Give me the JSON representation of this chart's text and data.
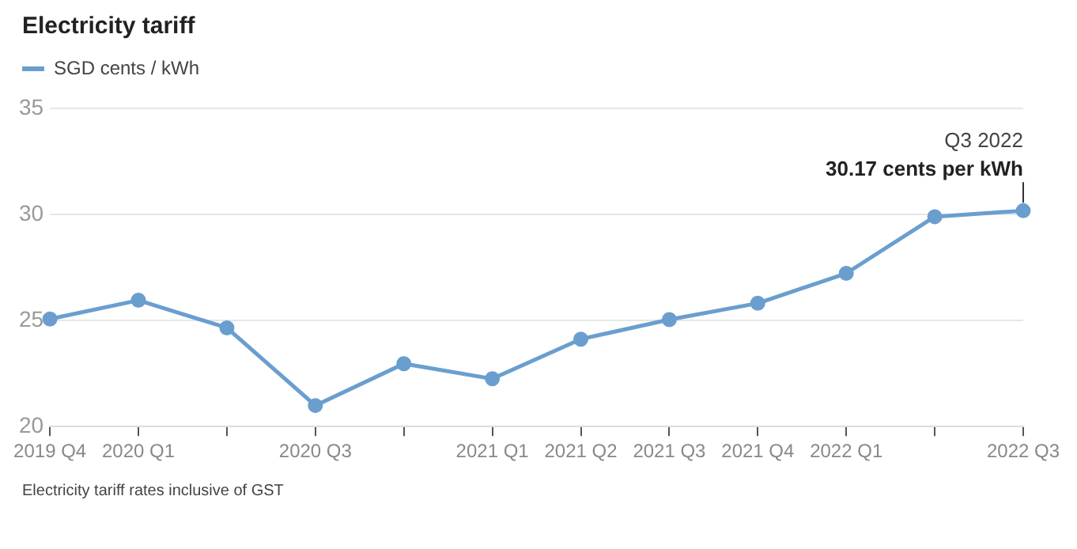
{
  "chart_data": {
    "type": "line",
    "title": "Electricity tariff",
    "categories": [
      "2019 Q4",
      "2020 Q1",
      null,
      "2020 Q3",
      null,
      "2021 Q1",
      "2021 Q2",
      "2021 Q3",
      "2021 Q4",
      "2022 Q1",
      null,
      "2022 Q3"
    ],
    "series": [
      {
        "name": "SGD cents / kWh",
        "color": "#6a9ecf",
        "values": [
          25.07,
          25.95,
          24.65,
          20.99,
          22.96,
          22.25,
          24.12,
          25.04,
          25.81,
          27.22,
          29.89,
          30.17
        ]
      }
    ],
    "ylim": [
      20,
      35
    ],
    "yticks": [
      20,
      25,
      30,
      35
    ],
    "grid": "y",
    "legend": "top left",
    "marker": "circle",
    "annotations": [
      {
        "text": "Q3 2022",
        "x": "2022 Q3",
        "y": 30.17
      },
      {
        "text": "30.17 cents per kWh",
        "x": "2022 Q3",
        "y": 30.17
      },
      "Electricity tariff rates inclusive of GST"
    ]
  }
}
